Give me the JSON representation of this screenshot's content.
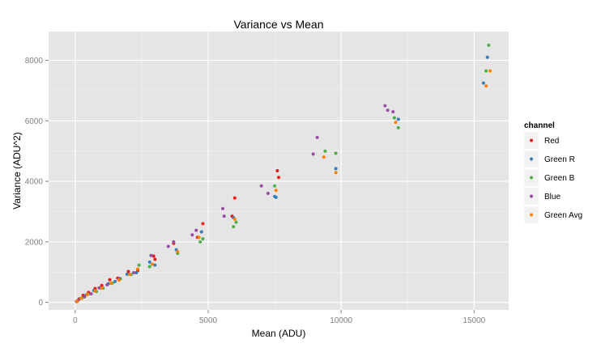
{
  "chart_data": {
    "type": "scatter",
    "title": "Variance vs Mean",
    "xlabel": "Mean (ADU)",
    "ylabel": "Variance (ADU^2)",
    "xlim": [
      -1000,
      16300
    ],
    "ylim": [
      -250,
      8950
    ],
    "xticks": [
      0,
      5000,
      10000,
      15000
    ],
    "yticks": [
      0,
      2000,
      4000,
      6000,
      8000
    ],
    "grid": true,
    "legend_position": "right",
    "legend_title": "channel",
    "series": [
      {
        "name": "Red",
        "color": "#e41a1c",
        "x": [
          50,
          150,
          300,
          500,
          750,
          1000,
          1300,
          1600,
          2000,
          2350,
          2950,
          3000,
          3700,
          4600,
          4800,
          5900,
          6000,
          7600,
          7650
        ],
        "y": [
          30,
          110,
          230,
          330,
          460,
          560,
          750,
          800,
          1020,
          1050,
          1530,
          1420,
          1950,
          2150,
          2600,
          2850,
          3450,
          4350,
          4130
        ]
      },
      {
        "name": "Green R",
        "color": "#377eb8",
        "x": [
          60,
          200,
          420,
          700,
          950,
          1250,
          1500,
          1950,
          2300,
          2800,
          3000,
          3800,
          4750,
          5950,
          7500,
          7550,
          9800,
          12150,
          15350,
          15500
        ],
        "y": [
          25,
          130,
          250,
          390,
          480,
          620,
          690,
          930,
          980,
          1330,
          1230,
          1740,
          2330,
          2800,
          3500,
          3470,
          4420,
          6050,
          7250,
          8100
        ]
      },
      {
        "name": "Green B",
        "color": "#4daf4a",
        "x": [
          80,
          250,
          480,
          800,
          1050,
          1400,
          1700,
          2100,
          2400,
          2800,
          3850,
          4700,
          4800,
          5950,
          6050,
          7500,
          9400,
          9800,
          12000,
          12150,
          15450,
          15550
        ],
        "y": [
          40,
          140,
          270,
          360,
          470,
          640,
          780,
          920,
          1230,
          1180,
          1620,
          2000,
          2100,
          2500,
          2650,
          3850,
          5000,
          4930,
          6100,
          5770,
          7650,
          8500
        ]
      },
      {
        "name": "Blue",
        "color": "#984ea3",
        "x": [
          100,
          350,
          600,
          900,
          1200,
          1650,
          2200,
          2850,
          3500,
          3700,
          4400,
          4550,
          5550,
          5600,
          7000,
          7250,
          8950,
          9100,
          11650,
          11750,
          11950
        ],
        "y": [
          60,
          180,
          280,
          480,
          580,
          790,
          980,
          1550,
          1850,
          2000,
          2230,
          2380,
          3100,
          2850,
          3850,
          3600,
          4900,
          5450,
          6500,
          6350,
          6300
        ]
      },
      {
        "name": "Green Avg",
        "color": "#ff7f00",
        "x": [
          70,
          220,
          450,
          750,
          1000,
          1350,
          1650,
          2050,
          2350,
          2900,
          3850,
          4650,
          6000,
          7550,
          9350,
          9800,
          12050,
          15450,
          15600
        ],
        "y": [
          35,
          135,
          260,
          375,
          475,
          630,
          735,
          925,
          1100,
          1260,
          1680,
          2150,
          2750,
          3700,
          4800,
          4290,
          5950,
          7150,
          7650
        ]
      }
    ]
  }
}
